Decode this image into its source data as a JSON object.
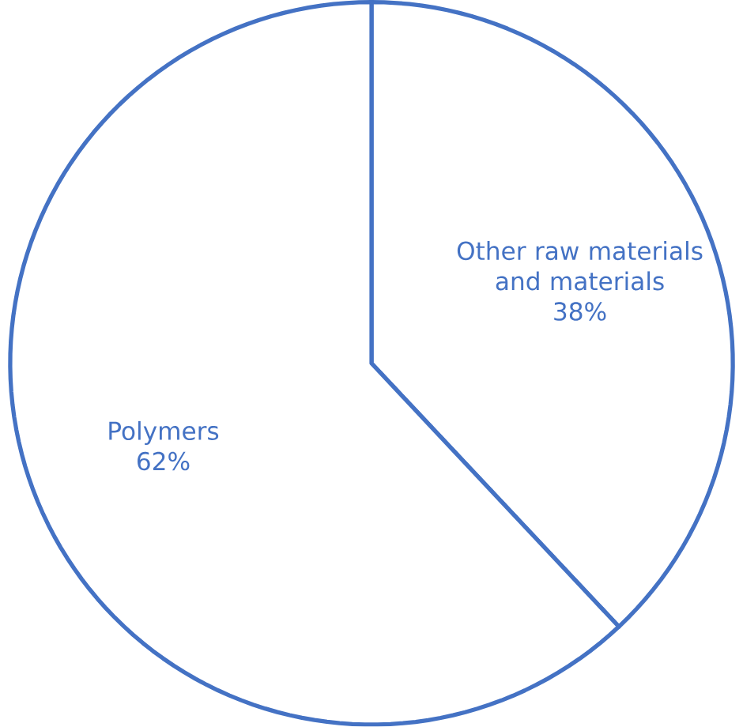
{
  "chart_data": {
    "type": "pie",
    "categories": [
      "Other raw materials and materials",
      "Polymers"
    ],
    "values": [
      38,
      62
    ],
    "colors": [
      "#ffffff",
      "#ffffff"
    ],
    "value_labels": [
      "38%",
      "62%"
    ]
  }
}
